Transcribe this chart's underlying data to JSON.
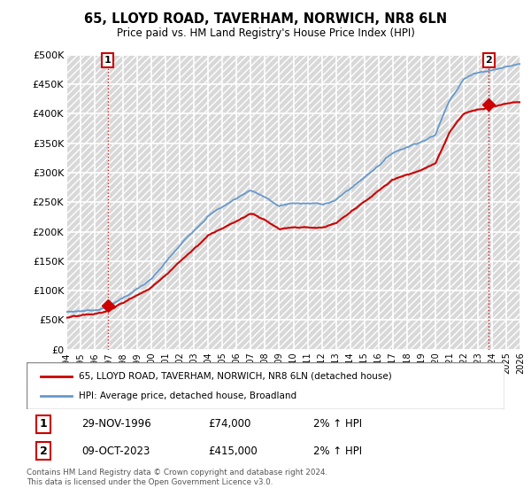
{
  "title": "65, LLOYD ROAD, TAVERHAM, NORWICH, NR8 6LN",
  "subtitle": "Price paid vs. HM Land Registry's House Price Index (HPI)",
  "ylim": [
    0,
    500000
  ],
  "yticks": [
    0,
    50000,
    100000,
    150000,
    200000,
    250000,
    300000,
    350000,
    400000,
    450000,
    500000
  ],
  "ytick_labels": [
    "£0",
    "£50K",
    "£100K",
    "£150K",
    "£200K",
    "£250K",
    "£300K",
    "£350K",
    "£400K",
    "£450K",
    "£500K"
  ],
  "background_color": "#ffffff",
  "plot_bg_color": "#e8e8e8",
  "hpi_line_color": "#6699cc",
  "price_line_color": "#cc0000",
  "marker_color": "#cc0000",
  "annotation_box_color": "#cc0000",
  "sale1_date": "29-NOV-1996",
  "sale1_price": 74000,
  "sale1_label": "1",
  "sale1_hpi": "2% ↑ HPI",
  "sale2_date": "09-OCT-2023",
  "sale2_price": 415000,
  "sale2_label": "2",
  "sale2_hpi": "2% ↑ HPI",
  "legend_line1": "65, LLOYD ROAD, TAVERHAM, NORWICH, NR8 6LN (detached house)",
  "legend_line2": "HPI: Average price, detached house, Broadland",
  "footer": "Contains HM Land Registry data © Crown copyright and database right 2024.\nThis data is licensed under the Open Government Licence v3.0.",
  "sale1_x": 1996.92,
  "sale2_x": 2023.78,
  "x_start": 1994,
  "x_end": 2026,
  "xticks": [
    1994,
    1995,
    1996,
    1997,
    1998,
    1999,
    2000,
    2001,
    2002,
    2003,
    2004,
    2005,
    2006,
    2007,
    2008,
    2009,
    2010,
    2011,
    2012,
    2013,
    2014,
    2015,
    2016,
    2017,
    2018,
    2019,
    2020,
    2021,
    2022,
    2023,
    2024,
    2025,
    2026
  ]
}
